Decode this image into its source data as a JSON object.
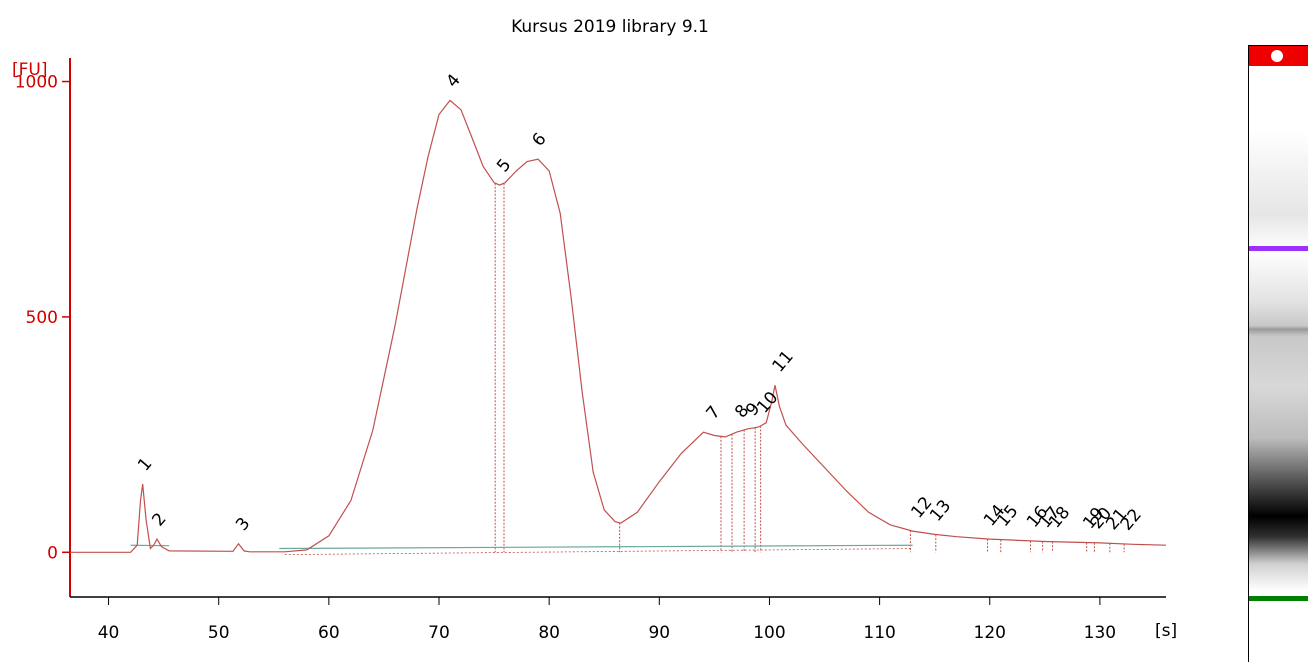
{
  "chart_data": {
    "type": "line",
    "title": "Kursus 2019 library 9.1",
    "ylabel": "[FU]",
    "xlabel": "[s]",
    "xlim": [
      36.5,
      136
    ],
    "ylim": [
      -95,
      1050
    ],
    "xticks": [
      40,
      50,
      60,
      70,
      80,
      90,
      100,
      110,
      120,
      130
    ],
    "yticks": [
      0,
      500,
      1000
    ],
    "grid": false,
    "series": [
      {
        "color": "#c0504d",
        "x": [
          36.5,
          42.0,
          42.6,
          42.9,
          43.1,
          43.4,
          43.8,
          44.1,
          44.4,
          44.8,
          45.5,
          51.3,
          51.8,
          52.3,
          52.8,
          56.0,
          58.0,
          60.0,
          62.0,
          64.0,
          66.0,
          68.0,
          69.0,
          70.0,
          71.0,
          72.0,
          73.0,
          74.0,
          75.0,
          75.5,
          76.0,
          77.0,
          78.0,
          79.0,
          80.0,
          81.0,
          82.0,
          83.0,
          84.0,
          85.0,
          86.0,
          86.5,
          88.0,
          90.0,
          92.0,
          94.0,
          95.0,
          96.0,
          97.0,
          98.0,
          99.0,
          99.7,
          100.2,
          100.5,
          100.9,
          101.5,
          103.0,
          105.0,
          107.0,
          109.0,
          111.0,
          113.0,
          115.0,
          117.0,
          120.0,
          125.0,
          130.0,
          133.0,
          136.0
        ],
        "y": [
          0,
          0,
          15,
          110,
          145,
          70,
          8,
          15,
          28,
          12,
          3,
          2,
          18,
          3,
          1,
          1,
          5,
          35,
          110,
          260,
          480,
          730,
          840,
          930,
          960,
          940,
          880,
          820,
          785,
          780,
          785,
          810,
          830,
          835,
          810,
          720,
          540,
          340,
          170,
          90,
          65,
          62,
          85,
          150,
          210,
          255,
          248,
          245,
          255,
          262,
          266,
          275,
          320,
          355,
          310,
          270,
          230,
          180,
          130,
          85,
          58,
          45,
          38,
          33,
          28,
          23,
          20,
          17,
          15
        ]
      }
    ],
    "baseline": {
      "color": "#6aa89e",
      "segments": [
        {
          "x": [
            42.0,
            45.5
          ],
          "y": [
            15,
            14
          ]
        },
        {
          "x": [
            55.5,
            113.0
          ],
          "y": [
            8,
            15
          ]
        }
      ]
    },
    "peaks": [
      {
        "label": "1",
        "x": 43.0,
        "y": 145,
        "color": "#008000"
      },
      {
        "label": "2",
        "x": 44.3,
        "y": 28,
        "color": "#000000"
      },
      {
        "label": "3",
        "x": 51.9,
        "y": 18,
        "color": "#000000"
      },
      {
        "label": "4",
        "x": 71.0,
        "y": 960,
        "color": "#000000"
      },
      {
        "label": "5",
        "x": 75.6,
        "y": 780,
        "color": "#000000"
      },
      {
        "label": "6",
        "x": 78.8,
        "y": 835,
        "color": "#000000"
      },
      {
        "label": "7",
        "x": 94.6,
        "y": 255,
        "color": "#000000"
      },
      {
        "label": "8",
        "x": 97.2,
        "y": 258,
        "color": "#000000"
      },
      {
        "label": "9",
        "x": 98.2,
        "y": 262,
        "color": "#000000"
      },
      {
        "label": "10",
        "x": 99.2,
        "y": 268,
        "color": "#000000"
      },
      {
        "label": "11",
        "x": 100.6,
        "y": 355,
        "color": "#000000"
      },
      {
        "label": "12",
        "x": 113.2,
        "y": 45,
        "color": "#8a2be2"
      },
      {
        "label": "13",
        "x": 114.9,
        "y": 38,
        "color": "#000000"
      },
      {
        "label": "14",
        "x": 119.8,
        "y": 28,
        "color": "#000000"
      },
      {
        "label": "15",
        "x": 121.0,
        "y": 27,
        "color": "#000000"
      },
      {
        "label": "16",
        "x": 123.7,
        "y": 25,
        "color": "#000000"
      },
      {
        "label": "17",
        "x": 124.8,
        "y": 24,
        "color": "#000000"
      },
      {
        "label": "18",
        "x": 125.7,
        "y": 24,
        "color": "#000000"
      },
      {
        "label": "19",
        "x": 128.8,
        "y": 22,
        "color": "#000000"
      },
      {
        "label": "20",
        "x": 129.5,
        "y": 22,
        "color": "#000000"
      },
      {
        "label": "21",
        "x": 130.9,
        "y": 20,
        "color": "#000000"
      },
      {
        "label": "22",
        "x": 132.2,
        "y": 19,
        "color": "#000000"
      }
    ],
    "dividers_x": [
      75.1,
      75.9,
      86.4,
      95.6,
      96.6,
      97.7,
      98.7,
      99.2,
      112.8,
      115.1,
      119.8,
      121.0,
      123.7,
      124.8,
      125.7,
      128.8,
      129.5,
      130.9,
      132.2
    ]
  },
  "gel": {
    "top_color": "#ee0000",
    "upper_marker_color": "#9b30ff",
    "lower_marker_color": "#008000"
  }
}
